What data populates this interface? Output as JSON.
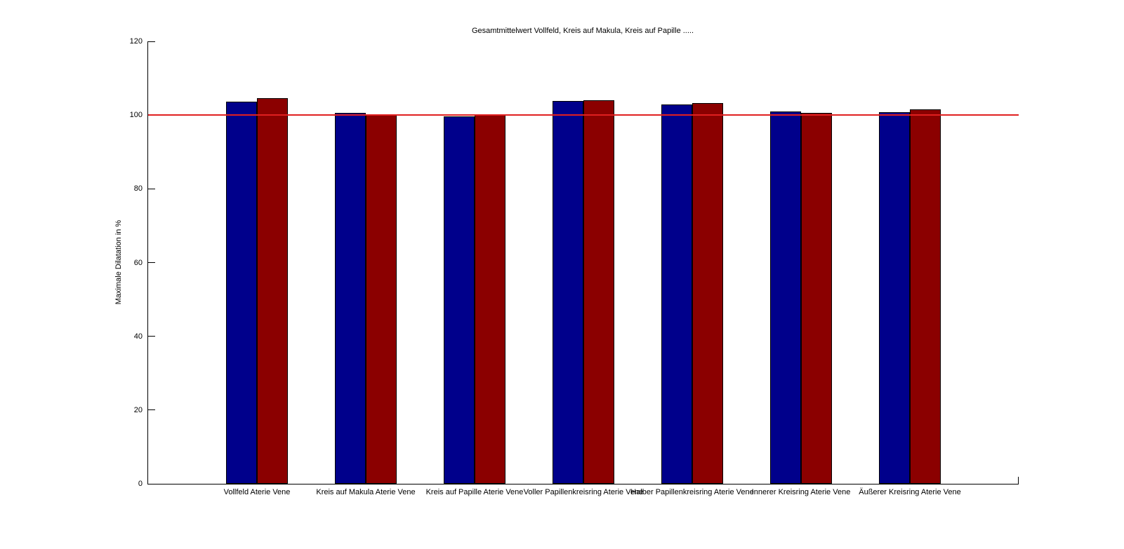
{
  "figure": {
    "background_color": "#FFFFFF",
    "axis_color": "#000000"
  },
  "chart_data": {
    "type": "bar",
    "title": "Gesamtmittelwert Vollfeld, Kreis auf Makula, Kreis auf Papille .....",
    "xlabel": "",
    "ylabel": "Maximale Dilatation in %",
    "ylim": [
      0,
      120
    ],
    "yticks": [
      0,
      20,
      40,
      60,
      80,
      100,
      120
    ],
    "grid": false,
    "legend": null,
    "categories": [
      "Vollfeld Aterie Vene",
      "Kreis auf Makula Aterie Vene",
      "Kreis auf Papille Aterie Vene",
      "Voller Papillenkreisring Aterie Vene",
      "Halber Papillenkreisring Aterie Vene",
      "Innerer Kreisring Aterie Vene",
      "Äußerer Kreisring Aterie Vene"
    ],
    "series": [
      {
        "name": "Aterie",
        "color": "#00008B",
        "values": [
          103.7,
          100.6,
          99.7,
          103.8,
          102.9,
          101.0,
          100.8
        ]
      },
      {
        "name": "Vene",
        "color": "#8B0000",
        "values": [
          104.6,
          100.0,
          100.3,
          104.0,
          103.3,
          100.7,
          101.6
        ]
      }
    ],
    "bar_edge_color": "#000000",
    "reference_line": {
      "y": 100,
      "color": "#E02020"
    }
  }
}
